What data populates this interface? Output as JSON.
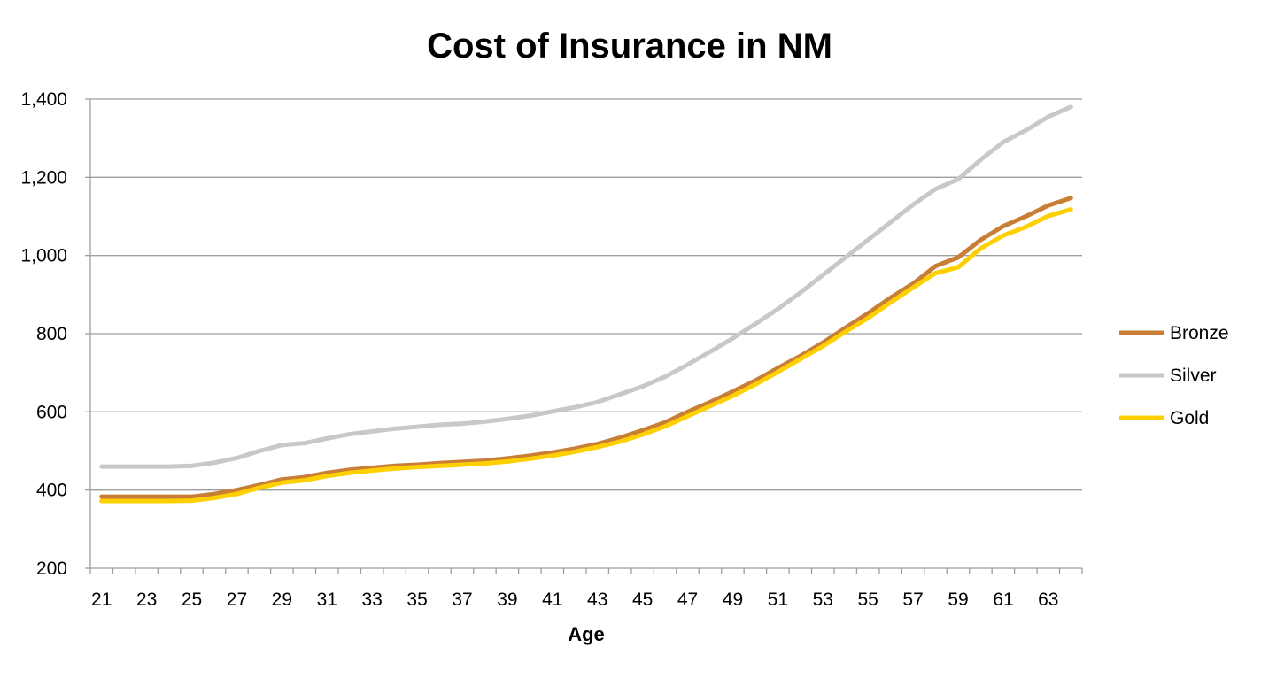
{
  "chart_data": {
    "type": "line",
    "title": "Cost of Insurance in NM",
    "xlabel": "Age",
    "ylabel": "",
    "ylim": [
      200,
      1400
    ],
    "yticks": [
      200,
      400,
      600,
      800,
      1000,
      1200,
      1400
    ],
    "ytick_labels": [
      "200",
      "400",
      "600",
      "800",
      "1,000",
      "1,200",
      "1,400"
    ],
    "x": [
      21,
      22,
      23,
      24,
      25,
      26,
      27,
      28,
      29,
      30,
      31,
      32,
      33,
      34,
      35,
      36,
      37,
      38,
      39,
      40,
      41,
      42,
      43,
      44,
      45,
      46,
      47,
      48,
      49,
      50,
      51,
      52,
      53,
      54,
      55,
      56,
      57,
      58,
      59,
      60,
      61,
      62,
      63,
      64
    ],
    "xtick_labels": [
      "21",
      "23",
      "25",
      "27",
      "29",
      "31",
      "33",
      "35",
      "37",
      "39",
      "41",
      "43",
      "45",
      "47",
      "49",
      "51",
      "53",
      "55",
      "57",
      "59",
      "61",
      "63"
    ],
    "grid": true,
    "legend_position": "right",
    "series": [
      {
        "name": "Bronze",
        "color": "#C97E35",
        "values": [
          383,
          383,
          383,
          383,
          383,
          390,
          400,
          413,
          427,
          433,
          444,
          452,
          457,
          462,
          465,
          469,
          472,
          475,
          481,
          488,
          496,
          506,
          518,
          534,
          553,
          573,
          600,
          625,
          652,
          680,
          712,
          743,
          777,
          815,
          852,
          892,
          928,
          973,
          995,
          1040,
          1075,
          1100,
          1128,
          1147
        ]
      },
      {
        "name": "Silver",
        "color": "#C8C8C8",
        "values": [
          460,
          460,
          460,
          460,
          462,
          470,
          482,
          500,
          515,
          520,
          532,
          543,
          550,
          557,
          562,
          567,
          570,
          575,
          582,
          590,
          601,
          612,
          625,
          645,
          665,
          690,
          721,
          754,
          788,
          825,
          863,
          905,
          950,
          995,
          1040,
          1085,
          1130,
          1170,
          1195,
          1245,
          1290,
          1320,
          1355,
          1380
        ]
      },
      {
        "name": "Gold",
        "color": "#FFD000",
        "values": [
          372,
          372,
          372,
          372,
          373,
          380,
          390,
          406,
          419,
          425,
          436,
          444,
          450,
          455,
          459,
          462,
          465,
          468,
          473,
          480,
          488,
          498,
          510,
          524,
          542,
          563,
          589,
          615,
          641,
          670,
          702,
          735,
          768,
          805,
          840,
          880,
          918,
          955,
          970,
          1018,
          1051,
          1073,
          1101,
          1118
        ]
      }
    ]
  }
}
